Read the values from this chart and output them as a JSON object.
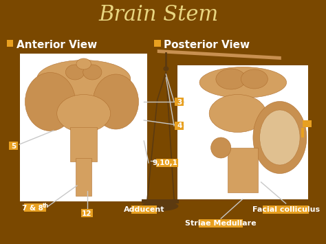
{
  "title": "Brain Stem",
  "title_color": "#E8D580",
  "title_fontsize": 22,
  "bg_color": "#7A4800",
  "label_bg": "#E8A020",
  "label_text_color": "#FFFFFF",
  "label_fontsize": 7.5,
  "bullet_color": "#E8A020",
  "heading_color": "#FFFFFF",
  "heading_fontsize": 11,
  "left_heading": "Anterior View",
  "right_heading": "Posterior View",
  "image_bg": "#FFFFFF",
  "line_color": "#D4A030",
  "line_color2": "#C8C8C8",
  "line_width": 1.0,
  "scale_color": "#8B6010",
  "scale_dark": "#5C3A10",
  "anat_tan": "#D4A060",
  "anat_dark": "#B07030",
  "anat_mid": "#C89050"
}
